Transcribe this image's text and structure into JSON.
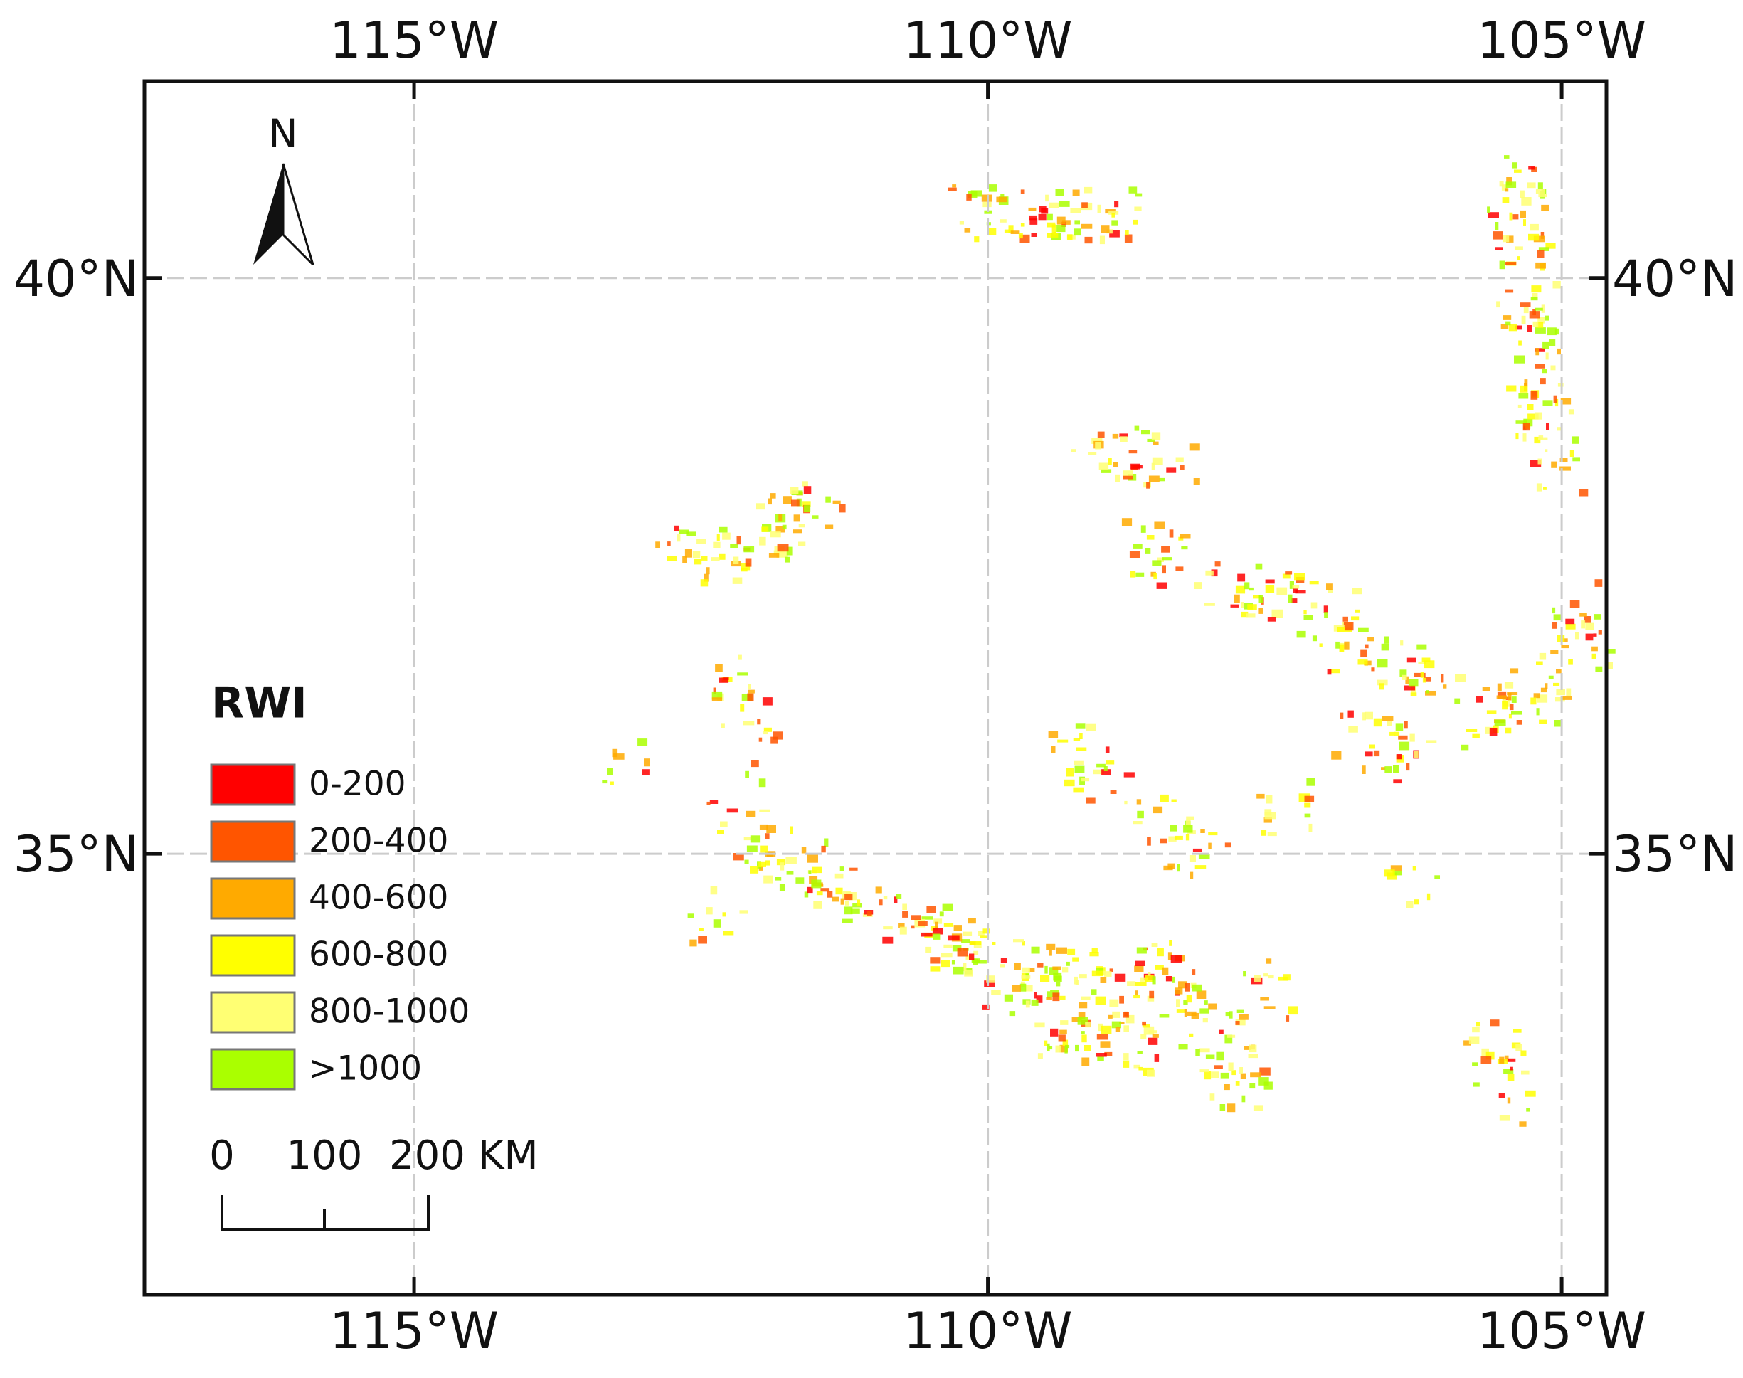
{
  "map": {
    "xlim": [
      -117.35,
      -104.61
    ],
    "ylim": [
      31.17,
      41.71
    ],
    "longitude_ticks": [
      {
        "value": -115,
        "label": "115°W"
      },
      {
        "value": -110,
        "label": "110°W"
      },
      {
        "value": -105,
        "label": "105°W"
      }
    ],
    "latitude_ticks": [
      {
        "value": 40,
        "label": "40°N"
      },
      {
        "value": 35,
        "label": "35°N"
      }
    ],
    "grid": true,
    "north_label": "N",
    "legend": {
      "title": "RWI",
      "items": [
        {
          "label": "0-200",
          "color": "#ff0000"
        },
        {
          "label": "200-400",
          "color": "#ff5500"
        },
        {
          "label": "400-600",
          "color": "#ffaa00"
        },
        {
          "label": "600-800",
          "color": "#ffff00"
        },
        {
          "label": "800-1000",
          "color": "#ffff73"
        },
        {
          "label": ">1000",
          "color": "#aaff00"
        }
      ]
    },
    "scale_bar": {
      "labels": [
        "0",
        "100",
        "200 KM"
      ]
    }
  }
}
